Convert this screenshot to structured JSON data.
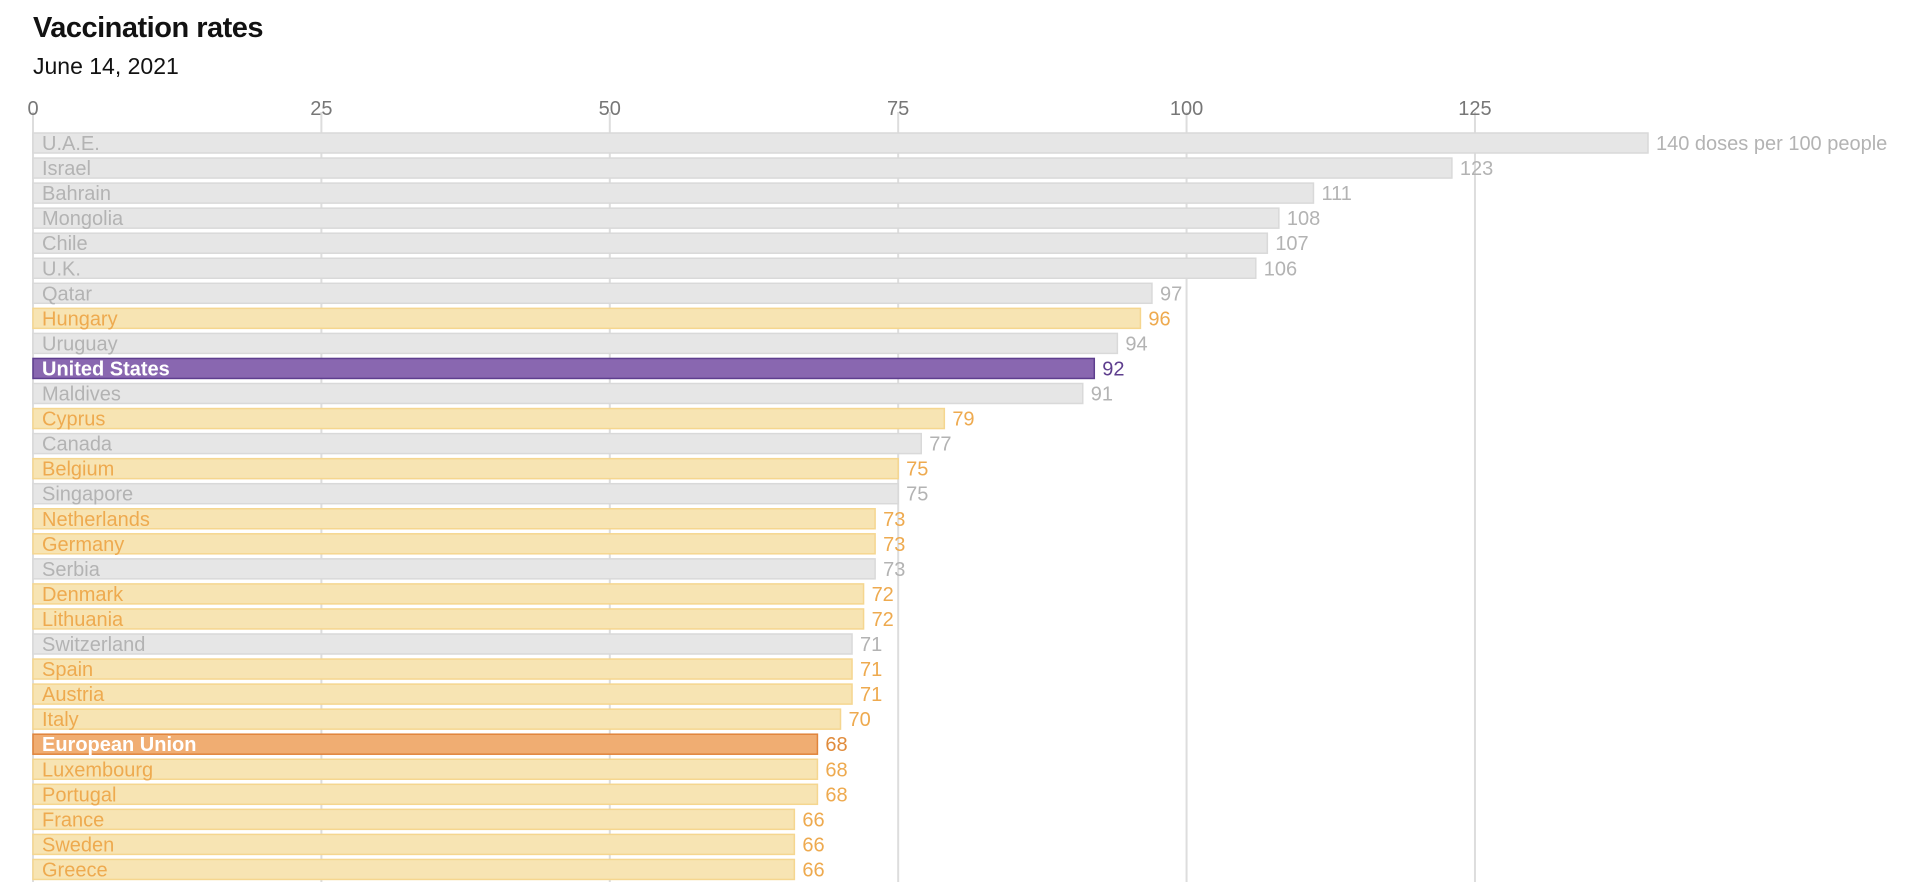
{
  "title": "Vaccination rates",
  "subtitle": "June 14, 2021",
  "colors": {
    "default_fill": "#e6e6e6",
    "default_stroke": "#d9d9d9",
    "default_text": "#b3b3b3",
    "eu_member_fill": "#f7e4b3",
    "eu_member_stroke": "#f5d68f",
    "eu_member_text": "#eeaa4f",
    "us_fill": "#8967b0",
    "us_stroke": "#5e3e8e",
    "us_value_text": "#5e3e8e",
    "eu_fill": "#f0ad72",
    "eu_stroke": "#e0843b",
    "eu_value_text": "#e08b3b",
    "grid": "#dddddd"
  },
  "chart_data": {
    "type": "bar",
    "orientation": "horizontal",
    "title": "Vaccination rates",
    "subtitle": "June 14, 2021",
    "unit_label": "doses per 100 people",
    "xlim": [
      0,
      140
    ],
    "x_ticks": [
      0,
      25,
      50,
      75,
      100,
      125
    ],
    "grid": true,
    "categories": [
      "U.A.E.",
      "Israel",
      "Bahrain",
      "Mongolia",
      "Chile",
      "U.K.",
      "Qatar",
      "Hungary",
      "Uruguay",
      "United States",
      "Maldives",
      "Cyprus",
      "Canada",
      "Belgium",
      "Singapore",
      "Netherlands",
      "Germany",
      "Serbia",
      "Denmark",
      "Lithuania",
      "Switzerland",
      "Spain",
      "Austria",
      "Italy",
      "European Union",
      "Luxembourg",
      "Portugal",
      "France",
      "Sweden",
      "Greece"
    ],
    "values": [
      140,
      123,
      111,
      108,
      107,
      106,
      97,
      96,
      94,
      92,
      91,
      79,
      77,
      75,
      75,
      73,
      73,
      73,
      72,
      72,
      71,
      71,
      71,
      70,
      68,
      68,
      68,
      66,
      66,
      66
    ],
    "value_labels": [
      "140 doses per 100 people",
      "123",
      "111",
      "108",
      "107",
      "106",
      "97",
      "96",
      "94",
      "92",
      "91",
      "79",
      "77",
      "75",
      "75",
      "73",
      "73",
      "73",
      "72",
      "72",
      "71",
      "71",
      "71",
      "70",
      "68",
      "68",
      "68",
      "66",
      "66",
      "66"
    ],
    "groups": [
      "other",
      "other",
      "other",
      "other",
      "other",
      "other",
      "other",
      "eu_member",
      "other",
      "us",
      "other",
      "eu_member",
      "other",
      "eu_member",
      "other",
      "eu_member",
      "eu_member",
      "other",
      "eu_member",
      "eu_member",
      "other",
      "eu_member",
      "eu_member",
      "eu_member",
      "eu",
      "eu_member",
      "eu_member",
      "eu_member",
      "eu_member",
      "eu_member"
    ]
  }
}
